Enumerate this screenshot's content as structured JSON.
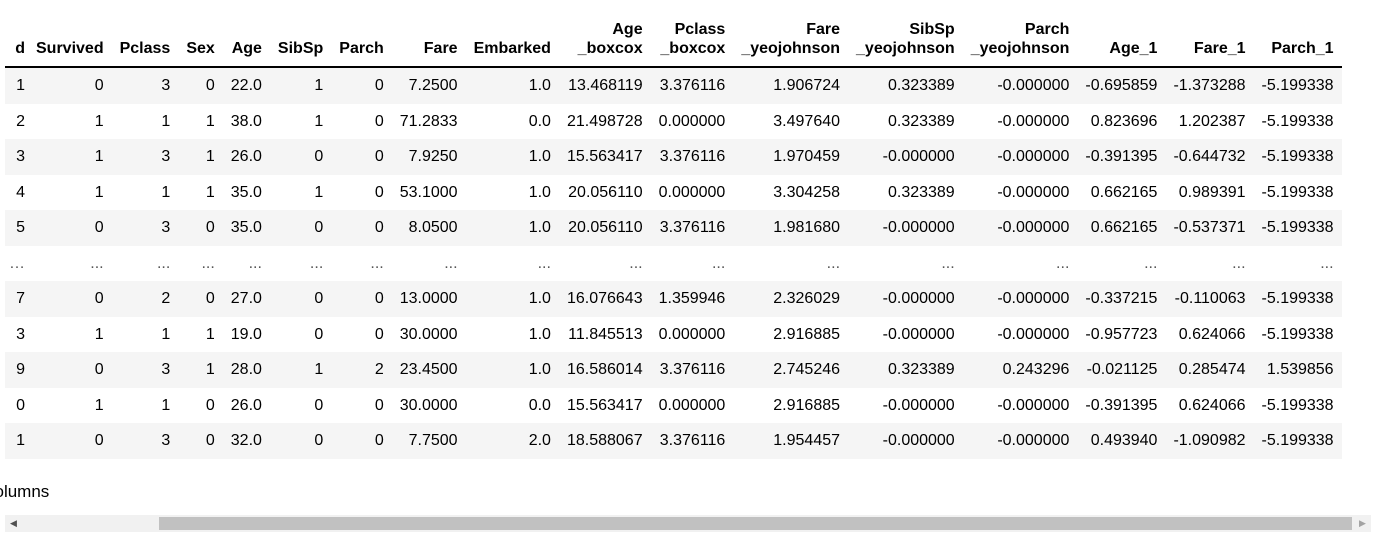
{
  "table": {
    "columns": [
      "d",
      "Survived",
      "Pclass",
      "Sex",
      "Age",
      "SibSp",
      "Parch",
      "Fare",
      "Embarked",
      "Age\n_boxcox",
      "Pclass\n_boxcox",
      "Fare\n_yeojohnson",
      "SibSp\n_yeojohnson",
      "Parch\n_yeojohnson",
      "Age_1",
      "Fare_1",
      "Parch_1"
    ],
    "rows": [
      [
        "1",
        "0",
        "3",
        "0",
        "22.0",
        "1",
        "0",
        "7.2500",
        "1.0",
        "13.468119",
        "3.376116",
        "1.906724",
        "0.323389",
        "-0.000000",
        "-0.695859",
        "-1.373288",
        "-5.199338"
      ],
      [
        "2",
        "1",
        "1",
        "1",
        "38.0",
        "1",
        "0",
        "71.2833",
        "0.0",
        "21.498728",
        "0.000000",
        "3.497640",
        "0.323389",
        "-0.000000",
        "0.823696",
        "1.202387",
        "-5.199338"
      ],
      [
        "3",
        "1",
        "3",
        "1",
        "26.0",
        "0",
        "0",
        "7.9250",
        "1.0",
        "15.563417",
        "3.376116",
        "1.970459",
        "-0.000000",
        "-0.000000",
        "-0.391395",
        "-0.644732",
        "-5.199338"
      ],
      [
        "4",
        "1",
        "1",
        "1",
        "35.0",
        "1",
        "0",
        "53.1000",
        "1.0",
        "20.056110",
        "0.000000",
        "3.304258",
        "0.323389",
        "-0.000000",
        "0.662165",
        "0.989391",
        "-5.199338"
      ],
      [
        "5",
        "0",
        "3",
        "0",
        "35.0",
        "0",
        "0",
        "8.0500",
        "1.0",
        "20.056110",
        "3.376116",
        "1.981680",
        "-0.000000",
        "-0.000000",
        "0.662165",
        "-0.537371",
        "-5.199338"
      ],
      [
        "…",
        "...",
        "...",
        "...",
        "...",
        "...",
        "...",
        "...",
        "...",
        "...",
        "...",
        "...",
        "...",
        "...",
        "...",
        "...",
        "..."
      ],
      [
        "7",
        "0",
        "2",
        "0",
        "27.0",
        "0",
        "0",
        "13.0000",
        "1.0",
        "16.076643",
        "1.359946",
        "2.326029",
        "-0.000000",
        "-0.000000",
        "-0.337215",
        "-0.110063",
        "-5.199338"
      ],
      [
        "3",
        "1",
        "1",
        "1",
        "19.0",
        "0",
        "0",
        "30.0000",
        "1.0",
        "11.845513",
        "0.000000",
        "2.916885",
        "-0.000000",
        "-0.000000",
        "-0.957723",
        "0.624066",
        "-5.199338"
      ],
      [
        "9",
        "0",
        "3",
        "1",
        "28.0",
        "1",
        "2",
        "23.4500",
        "1.0",
        "16.586014",
        "3.376116",
        "2.745246",
        "0.323389",
        "0.243296",
        "-0.021125",
        "0.285474",
        "1.539856"
      ],
      [
        "0",
        "1",
        "1",
        "0",
        "26.0",
        "0",
        "0",
        "30.0000",
        "0.0",
        "15.563417",
        "0.000000",
        "2.916885",
        "-0.000000",
        "-0.000000",
        "-0.391395",
        "0.624066",
        "-5.199338"
      ],
      [
        "1",
        "0",
        "3",
        "0",
        "32.0",
        "0",
        "0",
        "7.7500",
        "2.0",
        "18.588067",
        "3.376116",
        "1.954457",
        "-0.000000",
        "-0.000000",
        "0.493940",
        "-1.090982",
        "-5.199338"
      ]
    ]
  },
  "footer": {
    "text": "columns"
  },
  "scrollbar": {
    "left_arrow_icon": "◀",
    "right_arrow_icon": "▶",
    "thumb_color": "#c1c1c1",
    "track_color": "#f1f1f1"
  },
  "colors": {
    "row_stripe": "#f5f5f5",
    "header_border": "#000000"
  }
}
